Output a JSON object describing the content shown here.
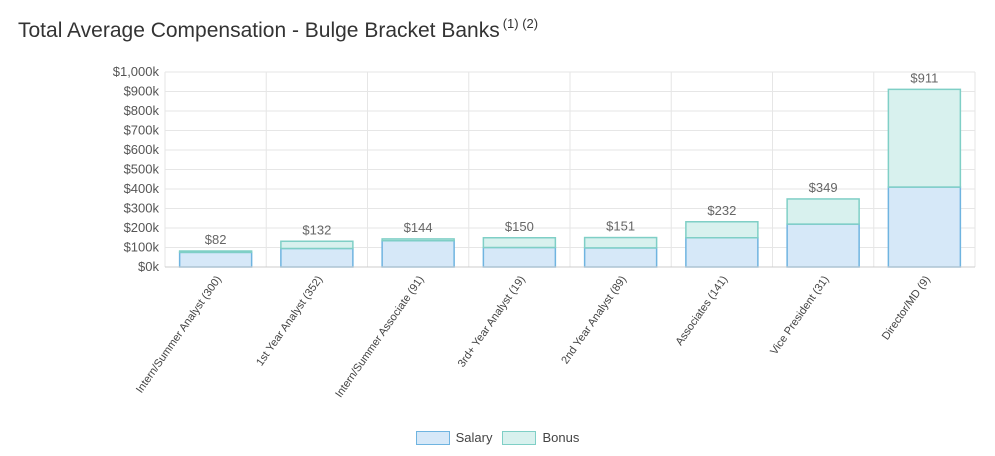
{
  "title": "Total Average Compensation - Bulge Bracket Banks",
  "footnote": "(1) (2)",
  "chart_data": {
    "type": "bar",
    "stacked": true,
    "categories": [
      "Intern/Summer Analyst (300)",
      "1st Year Analyst (352)",
      "Intern/Summer Associate (91)",
      "3rd+ Year Analyst (19)",
      "2nd Year Analyst (89)",
      "Associates (141)",
      "Vice President (31)",
      "Director/MD (9)"
    ],
    "series": [
      {
        "name": "Salary",
        "values": [
          75,
          95,
          135,
          100,
          98,
          150,
          220,
          410
        ],
        "fill": "#d6e8f8",
        "stroke": "#6fb4e0"
      },
      {
        "name": "Bonus",
        "values": [
          7,
          37,
          9,
          50,
          53,
          82,
          129,
          501
        ],
        "fill": "#d8f1ee",
        "stroke": "#7fcfc6"
      }
    ],
    "totals": [
      "$82",
      "$132",
      "$144",
      "$150",
      "$151",
      "$232",
      "$349",
      "$911"
    ],
    "ylim": [
      0,
      1000
    ],
    "yticks": [
      "$0k",
      "$100k",
      "$200k",
      "$300k",
      "$400k",
      "$500k",
      "$600k",
      "$700k",
      "$800k",
      "$900k",
      "$1,000k"
    ],
    "grid": true,
    "legend_position": "bottom-center"
  }
}
